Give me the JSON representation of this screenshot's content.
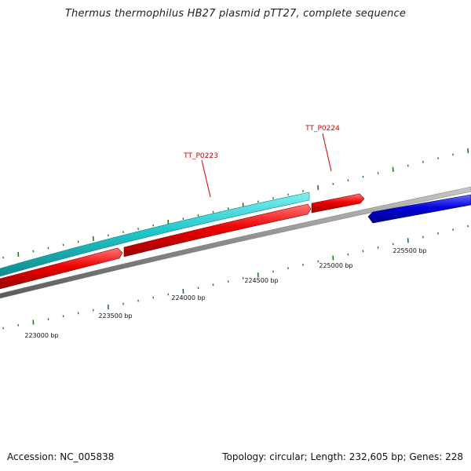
{
  "title": "Thermus thermophilus HB27 plasmid pTT27, complete sequence",
  "footer": {
    "accession": "Accession: NC_005838",
    "summary": "Topology: circular; Length: 232,605 bp; Genes: 228"
  },
  "colors": {
    "backbone": "#8c8c8c",
    "forward_gene": "#ee0000",
    "reverse_gene": "#0000dd",
    "feature": "#22c9cc",
    "tick": "#1a7a1a",
    "label": "#cc0000"
  },
  "genes": [
    {
      "label": "TT_P0223"
    },
    {
      "label": "TT_P0224"
    }
  ],
  "ruler": {
    "labels": [
      "223000 bp",
      "223500 bp",
      "224000 bp",
      "224500 bp",
      "225000 bp",
      "225500 bp"
    ]
  }
}
